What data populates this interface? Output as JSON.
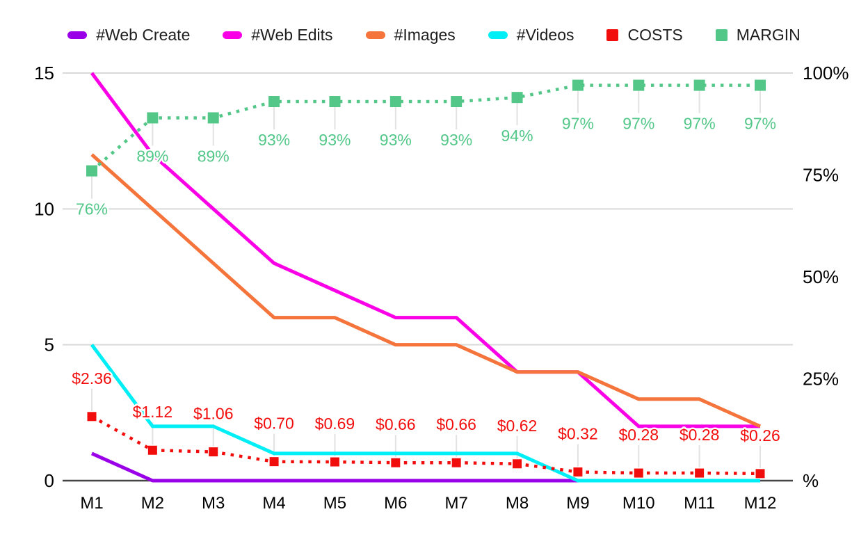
{
  "chart_data": {
    "type": "line",
    "title": "",
    "grid": true,
    "legend_position": "top",
    "x_categories": [
      "M1",
      "M2",
      "M3",
      "M4",
      "M5",
      "M6",
      "M7",
      "M8",
      "M9",
      "M10",
      "M11",
      "M12"
    ],
    "left_axis": {
      "ticks": [
        "15",
        "10",
        "5",
        "0"
      ],
      "tick_values": [
        15,
        10,
        5,
        0
      ],
      "min": 0,
      "max": 15
    },
    "right_axis": {
      "ticks": [
        "100%",
        "75%",
        "50%",
        "25%",
        "%"
      ],
      "tick_values": [
        100,
        75,
        50,
        25,
        0
      ],
      "min": 0,
      "max": 100
    },
    "series": [
      {
        "name": "#Web Create",
        "color": "#9a00e8",
        "axis": "left",
        "style": "solid",
        "values": [
          1,
          0,
          0,
          0,
          0,
          0,
          0,
          0,
          0,
          0,
          0,
          0
        ]
      },
      {
        "name": "#Web Edits",
        "color": "#fa00e6",
        "axis": "left",
        "style": "solid",
        "values": [
          15,
          12,
          10,
          8,
          7,
          6,
          6,
          4,
          4,
          2,
          2,
          2
        ]
      },
      {
        "name": "#Images",
        "color": "#f4743b",
        "axis": "left",
        "style": "solid",
        "values": [
          12,
          10,
          8,
          6,
          6,
          5,
          5,
          4,
          4,
          3,
          3,
          2
        ]
      },
      {
        "name": "#Videos",
        "color": "#00eef6",
        "axis": "left",
        "style": "solid",
        "values": [
          5,
          2,
          2,
          1,
          1,
          1,
          1,
          1,
          0,
          0,
          0,
          0
        ]
      },
      {
        "name": "COSTS",
        "color": "#f20d0d",
        "axis": "left",
        "style": "dotted",
        "marker": "square",
        "label_position": "above",
        "values": [
          2.36,
          1.12,
          1.06,
          0.7,
          0.69,
          0.66,
          0.66,
          0.62,
          0.32,
          0.28,
          0.28,
          0.26
        ],
        "labels": [
          "$2.36",
          "$1.12",
          "$1.06",
          "$0.70",
          "$0.69",
          "$0.66",
          "$0.66",
          "$0.62",
          "$0.32",
          "$0.28",
          "$0.28",
          "$0.26"
        ]
      },
      {
        "name": "MARGIN",
        "color": "#52c788",
        "axis": "right",
        "style": "dotted",
        "marker": "square",
        "label_position": "below",
        "values": [
          76,
          89,
          89,
          93,
          93,
          93,
          93,
          94,
          97,
          97,
          97,
          97
        ],
        "labels": [
          "76%",
          "89%",
          "89%",
          "93%",
          "93%",
          "93%",
          "93%",
          "94%",
          "97%",
          "97%",
          "97%",
          "97%"
        ]
      }
    ],
    "colors": {
      "grid": "#d9d9d9",
      "axis_line": "#454545",
      "whisker": "#e2e2e2",
      "tick_text": "#000000",
      "legend_text": "#1e1e1e",
      "background": "#ffffff"
    }
  }
}
